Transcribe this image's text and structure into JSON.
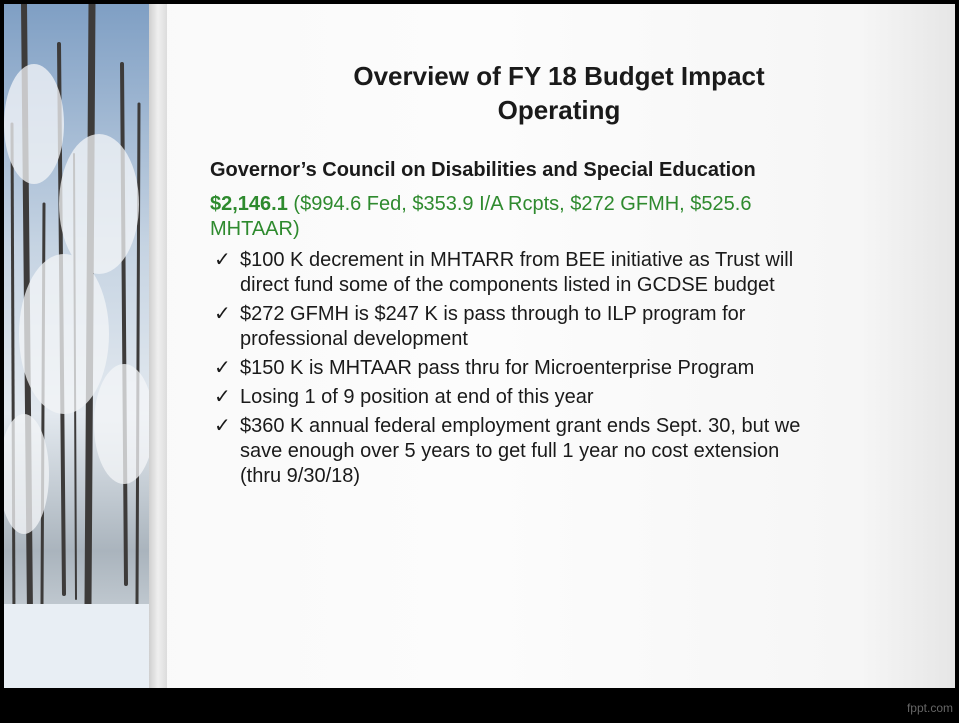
{
  "slide": {
    "title": [
      "Overview of FY 18 Budget Impact",
      "Operating"
    ],
    "heading": "Governor’s Council on Disabilities and Special Education",
    "amount": "$2,146.1",
    "amount_detail": "($994.6 Fed, $353.9 I/A Rcpts, $272 GFMH, $525.6 MHTAAR)",
    "bullet_mark": "✓",
    "bullets": [
      "$100 K decrement in MHTARR from BEE initiative as Trust will direct fund some of the components listed in GCDSE budget",
      "$272 GFMH is $247 K is pass through to ILP program for professional development",
      "$150 K is MHTAAR pass thru for Microenterprise Program",
      "Losing 1 of 9 position at end of this year",
      "$360 K annual federal employment grant ends Sept. 30, but we save enough over 5 years to get full 1 year no cost extension (thru 9/30/18)"
    ],
    "footer": "fppt.com"
  }
}
